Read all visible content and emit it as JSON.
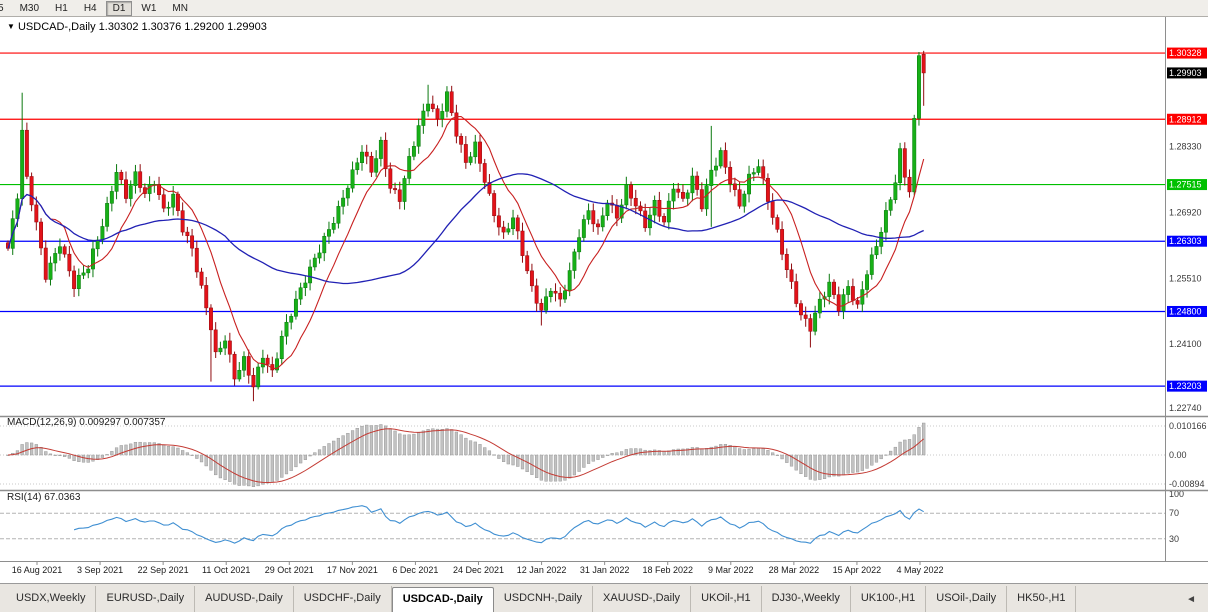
{
  "toolbar": {
    "timeframes": [
      "5",
      "M30",
      "H1",
      "H4",
      "D1",
      "W1",
      "MN"
    ],
    "active": "D1"
  },
  "chart": {
    "dropdown_icon": "▼",
    "symbol": "USDCAD-,Daily",
    "ohlc": "1.30302 1.30376 1.29200 1.29903",
    "current_price": {
      "value": 1.29903,
      "label": "1.29903",
      "bg": "#000000"
    },
    "levels": [
      {
        "price": 1.30328,
        "label": "1.30328",
        "color": "#fe0000"
      },
      {
        "price": 1.28912,
        "label": "1.28912",
        "color": "#fe0000"
      },
      {
        "price": 1.27515,
        "label": "1.27515",
        "color": "#00c000"
      },
      {
        "price": 1.26303,
        "label": "1.26303",
        "color": "#0000fe"
      },
      {
        "price": 1.248,
        "label": "1.24800",
        "color": "#0000fe"
      },
      {
        "price": 1.23203,
        "label": "1.23203",
        "color": "#0000fe"
      }
    ],
    "axis_ticks": [
      {
        "price": 1.2833,
        "label": "1.28330"
      },
      {
        "price": 1.2692,
        "label": "1.26920"
      },
      {
        "price": 1.2551,
        "label": "1.25510"
      },
      {
        "price": 1.241,
        "label": "1.24100"
      },
      {
        "price": 1.2274,
        "label": "1.22740"
      }
    ],
    "ma_fast_color": "#c82020",
    "ma_slow_color": "#2121b4",
    "up_fill": "#17b017",
    "up_stroke": "#0a780e",
    "down_fill": "#e31219",
    "down_stroke": "#8f0b0f"
  },
  "chart_data": {
    "type": "candlestick",
    "symbol": "USDCAD-",
    "timeframe": "Daily",
    "bars": 195,
    "last_bar": {
      "open": 1.30302,
      "high": 1.30376,
      "low": 1.292,
      "close": 1.29903
    },
    "price_range": [
      1.225,
      1.308
    ],
    "price_path": [
      [
        0,
        1.2615
      ],
      [
        2,
        1.2725
      ],
      [
        3,
        1.2862
      ],
      [
        4,
        1.276
      ],
      [
        6,
        1.2668
      ],
      [
        8,
        1.256
      ],
      [
        11,
        1.2628
      ],
      [
        14,
        1.2532
      ],
      [
        17,
        1.2575
      ],
      [
        20,
        1.267
      ],
      [
        23,
        1.2782
      ],
      [
        25,
        1.2725
      ],
      [
        27,
        1.2768
      ],
      [
        29,
        1.273
      ],
      [
        31,
        1.2762
      ],
      [
        33,
        1.27
      ],
      [
        35,
        1.2728
      ],
      [
        37,
        1.2655
      ],
      [
        39,
        1.261
      ],
      [
        41,
        1.2528
      ],
      [
        43,
        1.245
      ],
      [
        44,
        1.239
      ],
      [
        46,
        1.2425
      ],
      [
        48,
        1.2338
      ],
      [
        50,
        1.2372
      ],
      [
        52,
        1.2318
      ],
      [
        54,
        1.2388
      ],
      [
        56,
        1.2352
      ],
      [
        58,
        1.2428
      ],
      [
        61,
        1.25
      ],
      [
        64,
        1.2568
      ],
      [
        67,
        1.2638
      ],
      [
        70,
        1.27
      ],
      [
        73,
        1.2772
      ],
      [
        75,
        1.2822
      ],
      [
        77,
        1.2782
      ],
      [
        79,
        1.2842
      ],
      [
        81,
        1.2748
      ],
      [
        83,
        1.2722
      ],
      [
        85,
        1.2802
      ],
      [
        87,
        1.2872
      ],
      [
        89,
        1.2932
      ],
      [
        91,
        1.2892
      ],
      [
        93,
        1.2948
      ],
      [
        95,
        1.2862
      ],
      [
        97,
        1.2795
      ],
      [
        99,
        1.2832
      ],
      [
        101,
        1.2762
      ],
      [
        103,
        1.2692
      ],
      [
        105,
        1.2645
      ],
      [
        107,
        1.2682
      ],
      [
        109,
        1.2602
      ],
      [
        111,
        1.2525
      ],
      [
        113,
        1.2482
      ],
      [
        115,
        1.2535
      ],
      [
        117,
        1.2505
      ],
      [
        119,
        1.2562
      ],
      [
        121,
        1.2642
      ],
      [
        123,
        1.2692
      ],
      [
        125,
        1.2655
      ],
      [
        127,
        1.2722
      ],
      [
        129,
        1.2685
      ],
      [
        131,
        1.2742
      ],
      [
        133,
        1.2705
      ],
      [
        135,
        1.2662
      ],
      [
        137,
        1.2712
      ],
      [
        139,
        1.2675
      ],
      [
        141,
        1.2752
      ],
      [
        143,
        1.2715
      ],
      [
        145,
        1.2762
      ],
      [
        147,
        1.2705
      ],
      [
        149,
        1.2782
      ],
      [
        151,
        1.2822
      ],
      [
        153,
        1.2762
      ],
      [
        155,
        1.2705
      ],
      [
        157,
        1.2762
      ],
      [
        159,
        1.2792
      ],
      [
        161,
        1.2722
      ],
      [
        163,
        1.2652
      ],
      [
        165,
        1.2572
      ],
      [
        167,
        1.2502
      ],
      [
        168,
        1.2468
      ],
      [
        170,
        1.2442
      ],
      [
        172,
        1.2502
      ],
      [
        174,
        1.2542
      ],
      [
        176,
        1.2492
      ],
      [
        178,
        1.2532
      ],
      [
        180,
        1.2485
      ],
      [
        182,
        1.2562
      ],
      [
        184,
        1.2622
      ],
      [
        186,
        1.2692
      ],
      [
        188,
        1.2762
      ],
      [
        189,
        1.2822
      ],
      [
        190,
        1.2772
      ],
      [
        191,
        1.2735
      ],
      [
        192,
        1.2882
      ],
      [
        193,
        1.303
      ],
      [
        194,
        1.29903
      ]
    ],
    "spikes": [
      {
        "i": 3,
        "high": 1.2948
      },
      {
        "i": 43,
        "low": 1.233
      },
      {
        "i": 52,
        "low": 1.2288
      },
      {
        "i": 89,
        "high": 1.2965
      },
      {
        "i": 93,
        "high": 1.2962
      },
      {
        "i": 113,
        "low": 1.245
      },
      {
        "i": 149,
        "high": 1.2877,
        "low": 1.2661
      },
      {
        "i": 170,
        "low": 1.2403
      },
      {
        "i": 193,
        "high": 1.3035
      },
      {
        "i": 194,
        "open": 1.30302,
        "high": 1.30376,
        "low": 1.292,
        "close": 1.29903
      }
    ],
    "x_labels": [
      "16 Aug 2021",
      "3 Sep 2021",
      "22 Sep 2021",
      "11 Oct 2021",
      "29 Oct 2021",
      "17 Nov 2021",
      "6 Dec 2021",
      "24 Dec 2021",
      "12 Jan 2022",
      "31 Jan 2022",
      "18 Feb 2022",
      "9 Mar 2022",
      "28 Mar 2022",
      "15 Apr 2022",
      "4 May 2022"
    ]
  },
  "macd": {
    "title": "MACD(12,26,9)",
    "values": "0.009297 0.007357",
    "params": [
      12,
      26,
      9
    ],
    "axis": [
      "0.010166",
      "0.00",
      "-0.00894"
    ]
  },
  "rsi": {
    "title": "RSI(14)",
    "value": "67.0363",
    "period": 14,
    "axis": [
      "100",
      "70",
      "30"
    ],
    "guide_levels": [
      70,
      30
    ]
  },
  "tabs": {
    "items": [
      "USDX,Weekly",
      "EURUSD-,Daily",
      "AUDUSD-,Daily",
      "USDCHF-,Daily",
      "USDCAD-,Daily",
      "USDCNH-,Daily",
      "XAUUSD-,Daily",
      "UKOil-,H1",
      "DJ30-,Weekly",
      "UK100-,H1",
      "USOil-,Daily",
      "HK50-,H1"
    ],
    "active_index": 4,
    "scroll_left_icon": "◄"
  }
}
